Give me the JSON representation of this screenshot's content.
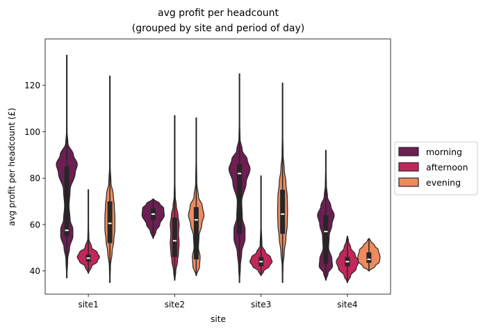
{
  "chart_data": {
    "type": "violin",
    "title": "avg profit per headcount\n(grouped by site and period of day)",
    "xlabel": "site",
    "ylabel": "avg profit per headcount (£)",
    "categories": [
      "site1",
      "site2",
      "site3",
      "site4"
    ],
    "ylim": [
      30,
      140
    ],
    "yticks": [
      40,
      60,
      80,
      100,
      120
    ],
    "grid": false,
    "legend_position": "center-right outside",
    "series": [
      {
        "name": "morning",
        "color": "#6b1f52",
        "values": [
          {
            "category": "site1",
            "min": 37,
            "q1": 55,
            "median": 57.5,
            "q3": 85,
            "max": 133,
            "profile": [
              [
                37,
                0.01
              ],
              [
                45,
                0.08
              ],
              [
                50,
                0.25
              ],
              [
                55,
                0.55
              ],
              [
                58,
                0.55
              ],
              [
                62,
                0.3
              ],
              [
                68,
                0.2
              ],
              [
                75,
                0.3
              ],
              [
                82,
                0.75
              ],
              [
                86,
                0.95
              ],
              [
                90,
                0.6
              ],
              [
                95,
                0.1
              ],
              [
                100,
                0.03
              ],
              [
                110,
                0.015
              ],
              [
                133,
                0.005
              ]
            ]
          },
          {
            "category": "site2",
            "min": 54,
            "q1": 62,
            "median": 64.5,
            "q3": 67,
            "max": 71,
            "profile": [
              [
                54,
                0.02
              ],
              [
                57,
                0.25
              ],
              [
                60,
                0.6
              ],
              [
                64,
                1.0
              ],
              [
                67,
                0.95
              ],
              [
                69,
                0.6
              ],
              [
                71,
                0.05
              ]
            ]
          },
          {
            "category": "site3",
            "min": 35,
            "q1": 56,
            "median": 82,
            "q3": 86,
            "max": 125,
            "profile": [
              [
                35,
                0.01
              ],
              [
                42,
                0.08
              ],
              [
                48,
                0.2
              ],
              [
                54,
                0.5
              ],
              [
                58,
                0.5
              ],
              [
                63,
                0.25
              ],
              [
                70,
                0.2
              ],
              [
                78,
                0.6
              ],
              [
                84,
                0.95
              ],
              [
                88,
                0.7
              ],
              [
                92,
                0.25
              ],
              [
                97,
                0.05
              ],
              [
                105,
                0.02
              ],
              [
                125,
                0.005
              ]
            ]
          },
          {
            "category": "site4",
            "min": 36,
            "q1": 43,
            "median": 57,
            "q3": 64,
            "max": 92,
            "profile": [
              [
                36,
                0.02
              ],
              [
                39,
                0.2
              ],
              [
                42,
                0.6
              ],
              [
                45,
                0.55
              ],
              [
                50,
                0.25
              ],
              [
                55,
                0.3
              ],
              [
                60,
                0.55
              ],
              [
                64,
                0.75
              ],
              [
                68,
                0.45
              ],
              [
                72,
                0.15
              ],
              [
                77,
                0.05
              ],
              [
                85,
                0.02
              ],
              [
                92,
                0.005
              ]
            ]
          }
        ]
      },
      {
        "name": "afternoon",
        "color": "#c3265b",
        "values": [
          {
            "category": "site1",
            "min": 39,
            "q1": 44,
            "median": 45.5,
            "q3": 47,
            "max": 75,
            "profile": [
              [
                39,
                0.02
              ],
              [
                42,
                0.3
              ],
              [
                44,
                0.8
              ],
              [
                46,
                1.0
              ],
              [
                48,
                0.8
              ],
              [
                50,
                0.3
              ],
              [
                54,
                0.05
              ],
              [
                60,
                0.02
              ],
              [
                75,
                0.005
              ]
            ]
          },
          {
            "category": "site2",
            "min": 36,
            "q1": 46,
            "median": 53,
            "q3": 63,
            "max": 107,
            "profile": [
              [
                36,
                0.02
              ],
              [
                40,
                0.1
              ],
              [
                44,
                0.25
              ],
              [
                48,
                0.35
              ],
              [
                52,
                0.4
              ],
              [
                56,
                0.35
              ],
              [
                60,
                0.4
              ],
              [
                64,
                0.3
              ],
              [
                68,
                0.15
              ],
              [
                72,
                0.05
              ],
              [
                80,
                0.02
              ],
              [
                107,
                0.005
              ]
            ]
          },
          {
            "category": "site3",
            "min": 38,
            "q1": 42,
            "median": 44,
            "q3": 46,
            "max": 81,
            "profile": [
              [
                38,
                0.02
              ],
              [
                40,
                0.25
              ],
              [
                42,
                0.75
              ],
              [
                44,
                1.0
              ],
              [
                46,
                0.85
              ],
              [
                48,
                0.4
              ],
              [
                51,
                0.08
              ],
              [
                60,
                0.02
              ],
              [
                81,
                0.005
              ]
            ]
          },
          {
            "category": "site4",
            "min": 35,
            "q1": 42,
            "median": 44,
            "q3": 46,
            "max": 55,
            "profile": [
              [
                35,
                0.02
              ],
              [
                38,
                0.3
              ],
              [
                41,
                0.8
              ],
              [
                44,
                1.0
              ],
              [
                47,
                0.7
              ],
              [
                50,
                0.3
              ],
              [
                53,
                0.1
              ],
              [
                55,
                0.02
              ]
            ]
          }
        ]
      },
      {
        "name": "evening",
        "color": "#ee8a5e",
        "values": [
          {
            "category": "site1",
            "min": 35,
            "q1": 52,
            "median": 60.5,
            "q3": 70,
            "max": 124,
            "profile": [
              [
                35,
                0.01
              ],
              [
                42,
                0.05
              ],
              [
                48,
                0.2
              ],
              [
                53,
                0.35
              ],
              [
                58,
                0.45
              ],
              [
                63,
                0.45
              ],
              [
                68,
                0.4
              ],
              [
                73,
                0.3
              ],
              [
                78,
                0.1
              ],
              [
                85,
                0.03
              ],
              [
                95,
                0.015
              ],
              [
                124,
                0.005
              ]
            ]
          },
          {
            "category": "site2",
            "min": 38,
            "q1": 45,
            "median": 62,
            "q3": 67.5,
            "max": 106,
            "profile": [
              [
                38,
                0.02
              ],
              [
                42,
                0.3
              ],
              [
                46,
                0.35
              ],
              [
                50,
                0.2
              ],
              [
                55,
                0.25
              ],
              [
                60,
                0.5
              ],
              [
                64,
                0.7
              ],
              [
                68,
                0.55
              ],
              [
                72,
                0.2
              ],
              [
                78,
                0.05
              ],
              [
                90,
                0.02
              ],
              [
                106,
                0.005
              ]
            ]
          },
          {
            "category": "site3",
            "min": 35,
            "q1": 56,
            "median": 64.5,
            "q3": 75,
            "max": 121,
            "profile": [
              [
                35,
                0.01
              ],
              [
                42,
                0.04
              ],
              [
                48,
                0.15
              ],
              [
                54,
                0.3
              ],
              [
                60,
                0.42
              ],
              [
                66,
                0.45
              ],
              [
                72,
                0.42
              ],
              [
                78,
                0.3
              ],
              [
                84,
                0.15
              ],
              [
                90,
                0.05
              ],
              [
                100,
                0.02
              ],
              [
                121,
                0.005
              ]
            ]
          },
          {
            "category": "site4",
            "min": 40,
            "q1": 43.5,
            "median": 45,
            "q3": 48,
            "max": 54,
            "profile": [
              [
                40,
                0.03
              ],
              [
                42,
                0.55
              ],
              [
                44,
                0.95
              ],
              [
                46,
                1.0
              ],
              [
                49,
                0.85
              ],
              [
                51,
                0.5
              ],
              [
                53,
                0.15
              ],
              [
                54,
                0.03
              ]
            ]
          }
        ]
      }
    ]
  }
}
